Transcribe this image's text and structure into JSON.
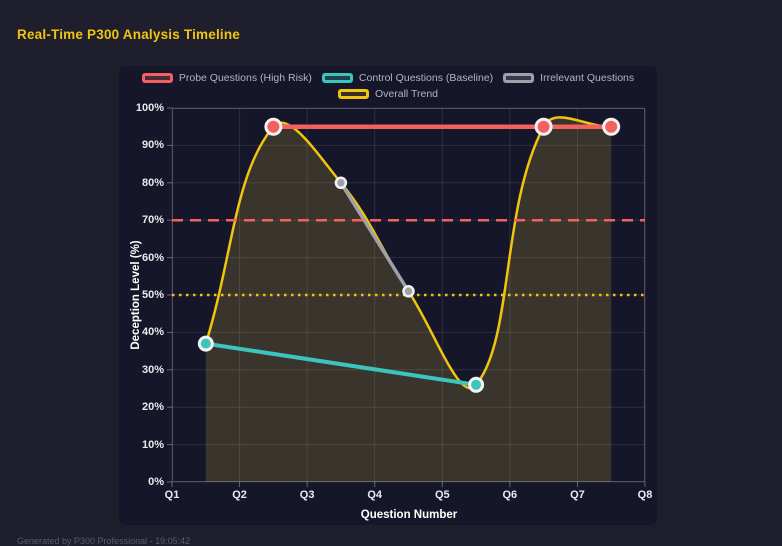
{
  "header": {
    "title": "Real-Time P300 Analysis Timeline",
    "title_color": "#f1c40f"
  },
  "footer": {
    "caption": "Generated by P300 Professional - 19:05:42"
  },
  "chart_data": {
    "type": "line",
    "title": "Real-Time P300 Analysis Timeline",
    "xlabel": "Question Number",
    "ylabel": "Deception Level (%)",
    "x_range": [
      1,
      8
    ],
    "y_range": [
      0,
      100
    ],
    "x_ticks": [
      "Q1",
      "Q2",
      "Q3",
      "Q4",
      "Q5",
      "Q6",
      "Q7",
      "Q8"
    ],
    "y_ticks": [
      "0%",
      "10%",
      "20%",
      "30%",
      "40%",
      "50%",
      "60%",
      "70%",
      "80%",
      "90%",
      "100%"
    ],
    "grid": true,
    "legend_position": "top-center",
    "series": [
      {
        "name": "Probe Questions (High Risk)",
        "color": "#f2605f",
        "swatch_fill": "rgba(242,96,95,0.25)",
        "points": [
          [
            2.5,
            95
          ],
          [
            6.5,
            95
          ],
          [
            7.5,
            95
          ]
        ],
        "line_width": 4.5,
        "point_radius": 7.5,
        "point_border": 3
      },
      {
        "name": "Control Questions (Baseline)",
        "color": "#3cc5bd",
        "swatch_fill": "rgba(60,197,189,0.25)",
        "points": [
          [
            1.5,
            37
          ],
          [
            5.5,
            26
          ]
        ],
        "line_width": 4,
        "point_radius": 6.5,
        "point_border": 3
      },
      {
        "name": "Irrelevant Questions",
        "color": "#a0a0a8",
        "swatch_fill": "rgba(160,160,168,0.25)",
        "points": [
          [
            3.5,
            80
          ],
          [
            4.5,
            51
          ]
        ],
        "line_width": 3.5,
        "point_radius": 5,
        "point_border": 2.5
      }
    ],
    "trend": {
      "name": "Overall Trend",
      "color": "#f0c40f",
      "swatch_fill": "rgba(240,196,15,0.15)",
      "points": [
        [
          1.5,
          37
        ],
        [
          2.5,
          95
        ],
        [
          3.5,
          80
        ],
        [
          4.5,
          51
        ],
        [
          5.5,
          26
        ],
        [
          6.5,
          95
        ],
        [
          7.5,
          95
        ]
      ],
      "fill_color": "rgba(240,205,60,0.17)",
      "tension": 0.4,
      "line_width": 2.5
    },
    "thresholds": [
      {
        "value": 70,
        "color": "#f2605f",
        "style": "dashed",
        "width": 2.5
      },
      {
        "value": 50,
        "color": "#f0c40f",
        "style": "dotted",
        "width": 2.5
      }
    ]
  }
}
